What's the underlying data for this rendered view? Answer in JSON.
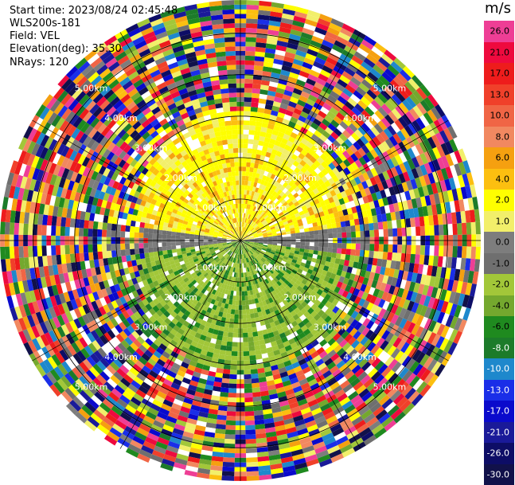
{
  "header": {
    "start_time": "Start time: 2023/08/24 02:45:48",
    "instrument": "WLS200s-181",
    "field": "Field: VEL",
    "elevation": "Elevation(deg): 35.30",
    "nrays": "NRays: 120"
  },
  "colorbar": {
    "unit": "m/s",
    "levels": [
      {
        "label": "26.0",
        "color": "#ee3e95"
      },
      {
        "label": "21.0",
        "color": "#ee0a3e"
      },
      {
        "label": "17.0",
        "color": "#ee1c1c"
      },
      {
        "label": "13.0",
        "color": "#f0402a"
      },
      {
        "label": "10.0",
        "color": "#f06545"
      },
      {
        "label": "8.0",
        "color": "#f18860"
      },
      {
        "label": "6.0",
        "color": "#f5a010"
      },
      {
        "label": "4.0",
        "color": "#fcbf10"
      },
      {
        "label": "2.0",
        "color": "#fefe00"
      },
      {
        "label": "1.0",
        "color": "#f2ef6a"
      },
      {
        "label": "0.0",
        "color": "#7d7d7d"
      },
      {
        "label": "-1.0",
        "color": "#6f6f6f"
      },
      {
        "label": "-2.0",
        "color": "#a2c739"
      },
      {
        "label": "-4.0",
        "color": "#74a82e"
      },
      {
        "label": "-6.0",
        "color": "#1f8a1f"
      },
      {
        "label": "-8.0",
        "color": "#1c7b2a"
      },
      {
        "label": "-10.0",
        "color": "#1e88cc"
      },
      {
        "label": "-13.0",
        "color": "#1a2ee8"
      },
      {
        "label": "-17.0",
        "color": "#0a0acc"
      },
      {
        "label": "-21.0",
        "color": "#1a1a99"
      },
      {
        "label": "-26.0",
        "color": "#0d0d66"
      },
      {
        "label": "-30.0",
        "color": "#11114a"
      }
    ]
  },
  "chart_data": {
    "type": "heatmap",
    "projection": "polar PPI",
    "field": "VEL",
    "nrays": 120,
    "range_rings_km": [
      1.0,
      2.0,
      3.0,
      4.0,
      5.0
    ],
    "ring_labels": [
      "1.00km",
      "2.00km",
      "3.00km",
      "4.00km",
      "5.00km"
    ],
    "pattern": {
      "north_sector": "positive velocities (2 to 6 m/s, yellow/orange) within ~3 km",
      "south_sector": "negative velocities (-2 to -8 m/s, green) within ~3 km",
      "east_west_band": "near 0 m/s (grey)",
      "outer_ranges": "noise across the full color scale beyond ~3 km"
    }
  }
}
